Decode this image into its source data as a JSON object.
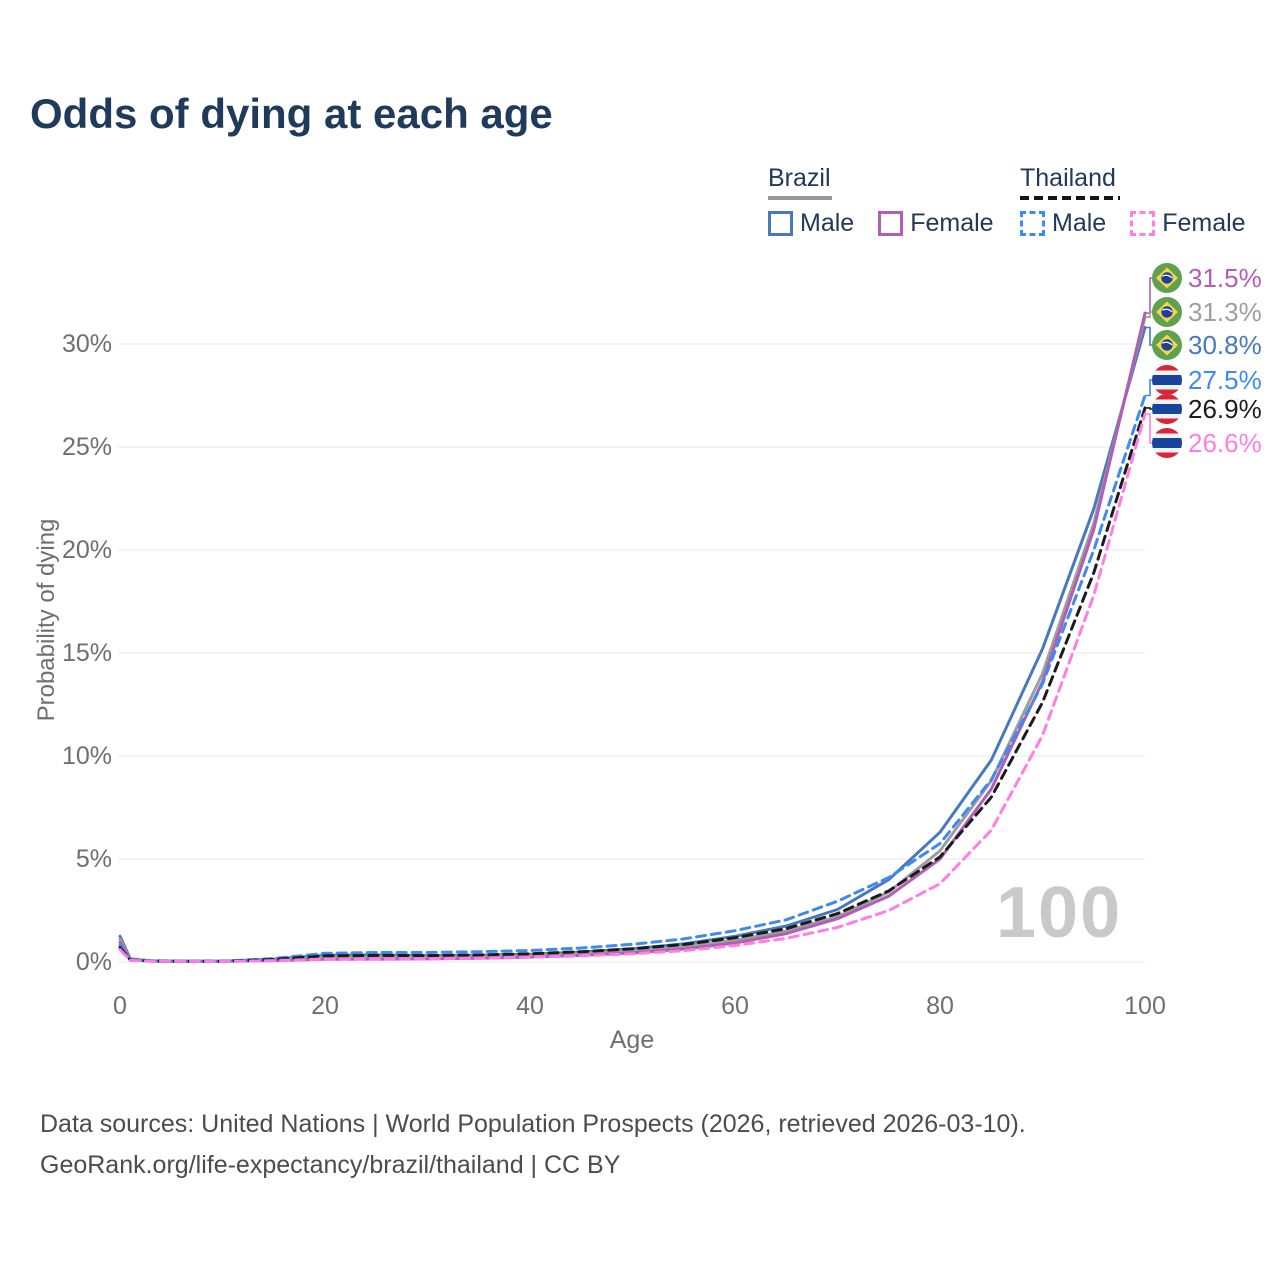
{
  "title": "Odds of dying at each age",
  "watermark_age_label": "100",
  "legend": {
    "groups": [
      {
        "label": "Brazil",
        "line_style": "solid",
        "underline_color": "#999999",
        "items": [
          {
            "label": "Male",
            "color": "#4879be"
          },
          {
            "label": "Female",
            "color": "#b05fb5"
          }
        ]
      },
      {
        "label": "Thailand",
        "line_style": "dashed",
        "underline_color": "#141414",
        "items": [
          {
            "label": "Male",
            "color": "#3d8af2"
          },
          {
            "label": "Female",
            "color": "#ff7de5"
          }
        ]
      }
    ]
  },
  "chart_data": {
    "type": "line",
    "title": "Odds of dying at each age",
    "xlabel": "Age",
    "ylabel": "Probability of dying",
    "y_unit": "percent",
    "xlim": [
      0,
      100
    ],
    "ylim": [
      0,
      33
    ],
    "xticks": [
      0,
      20,
      40,
      60,
      80,
      100
    ],
    "ytick_labels": [
      "0%",
      "5%",
      "10%",
      "15%",
      "20%",
      "25%",
      "30%"
    ],
    "grid": true,
    "legend_position": "top-right",
    "x": [
      0,
      1,
      3,
      5,
      10,
      15,
      20,
      25,
      30,
      35,
      40,
      45,
      50,
      55,
      60,
      65,
      70,
      75,
      80,
      85,
      90,
      95,
      100
    ],
    "series": [
      {
        "name": "Brazil Male",
        "country": "Brazil",
        "sex": "male",
        "color": "#4879be",
        "dashed": false,
        "flag": "brazil",
        "end_label": "30.8%",
        "end_label_color": "#4879be",
        "values": [
          1.25,
          0.15,
          0.06,
          0.05,
          0.04,
          0.14,
          0.33,
          0.34,
          0.31,
          0.33,
          0.38,
          0.48,
          0.64,
          0.88,
          1.25,
          1.75,
          2.55,
          4.0,
          6.3,
          9.8,
          15.2,
          22.0,
          30.8
        ]
      },
      {
        "name": "Brazil All",
        "country": "Brazil",
        "sex": "all",
        "color": "#9e9e9e",
        "dashed": false,
        "flag": "brazil",
        "end_label": "31.3%",
        "end_label_color": "#9e9e9e",
        "values": [
          1.1,
          0.13,
          0.05,
          0.04,
          0.035,
          0.1,
          0.24,
          0.25,
          0.23,
          0.26,
          0.31,
          0.4,
          0.54,
          0.75,
          1.05,
          1.5,
          2.2,
          3.4,
          5.4,
          8.8,
          14.0,
          21.3,
          31.3
        ]
      },
      {
        "name": "Brazil Female",
        "country": "Brazil",
        "sex": "female",
        "color": "#b05fb5",
        "dashed": false,
        "flag": "brazil",
        "end_label": "31.5%",
        "end_label_color": "#b05fb5",
        "values": [
          0.95,
          0.11,
          0.045,
          0.035,
          0.03,
          0.07,
          0.13,
          0.14,
          0.15,
          0.18,
          0.24,
          0.32,
          0.44,
          0.63,
          0.92,
          1.38,
          2.1,
          3.2,
          5.0,
          8.4,
          13.6,
          21.0,
          31.5
        ]
      },
      {
        "name": "Thailand Male",
        "country": "Thailand",
        "sex": "male",
        "color": "#3d8af2",
        "dashed": true,
        "flag": "thailand",
        "end_label": "27.5%",
        "end_label_color": "#3d8af2",
        "values": [
          0.8,
          0.1,
          0.05,
          0.04,
          0.04,
          0.17,
          0.42,
          0.46,
          0.46,
          0.5,
          0.56,
          0.68,
          0.86,
          1.12,
          1.52,
          2.05,
          2.95,
          4.1,
          5.75,
          8.85,
          13.5,
          20.0,
          27.5
        ]
      },
      {
        "name": "Thailand All",
        "country": "Thailand",
        "sex": "all",
        "color": "#1c1c1c",
        "dashed": true,
        "flag": "thailand",
        "end_label": "26.9%",
        "end_label_color": "#1c1c1c",
        "values": [
          0.7,
          0.09,
          0.045,
          0.035,
          0.03,
          0.12,
          0.3,
          0.32,
          0.31,
          0.34,
          0.4,
          0.5,
          0.64,
          0.85,
          1.18,
          1.62,
          2.35,
          3.45,
          5.1,
          8.0,
          12.6,
          18.9,
          26.9
        ]
      },
      {
        "name": "Thailand Female",
        "country": "Thailand",
        "sex": "female",
        "color": "#ff7de5",
        "dashed": true,
        "flag": "thailand",
        "end_label": "26.6%",
        "end_label_color": "#ff7de5",
        "values": [
          0.6,
          0.08,
          0.04,
          0.03,
          0.025,
          0.07,
          0.14,
          0.15,
          0.16,
          0.19,
          0.24,
          0.3,
          0.4,
          0.55,
          0.8,
          1.15,
          1.68,
          2.5,
          3.8,
          6.4,
          11.0,
          17.8,
          26.6
        ]
      }
    ]
  },
  "footer": {
    "line1": "Data sources: United Nations | World Population Prospects (2026, retrieved 2026-03-10).",
    "line2": "GeoRank.org/life-expectancy/brazil/thailand | CC BY"
  }
}
